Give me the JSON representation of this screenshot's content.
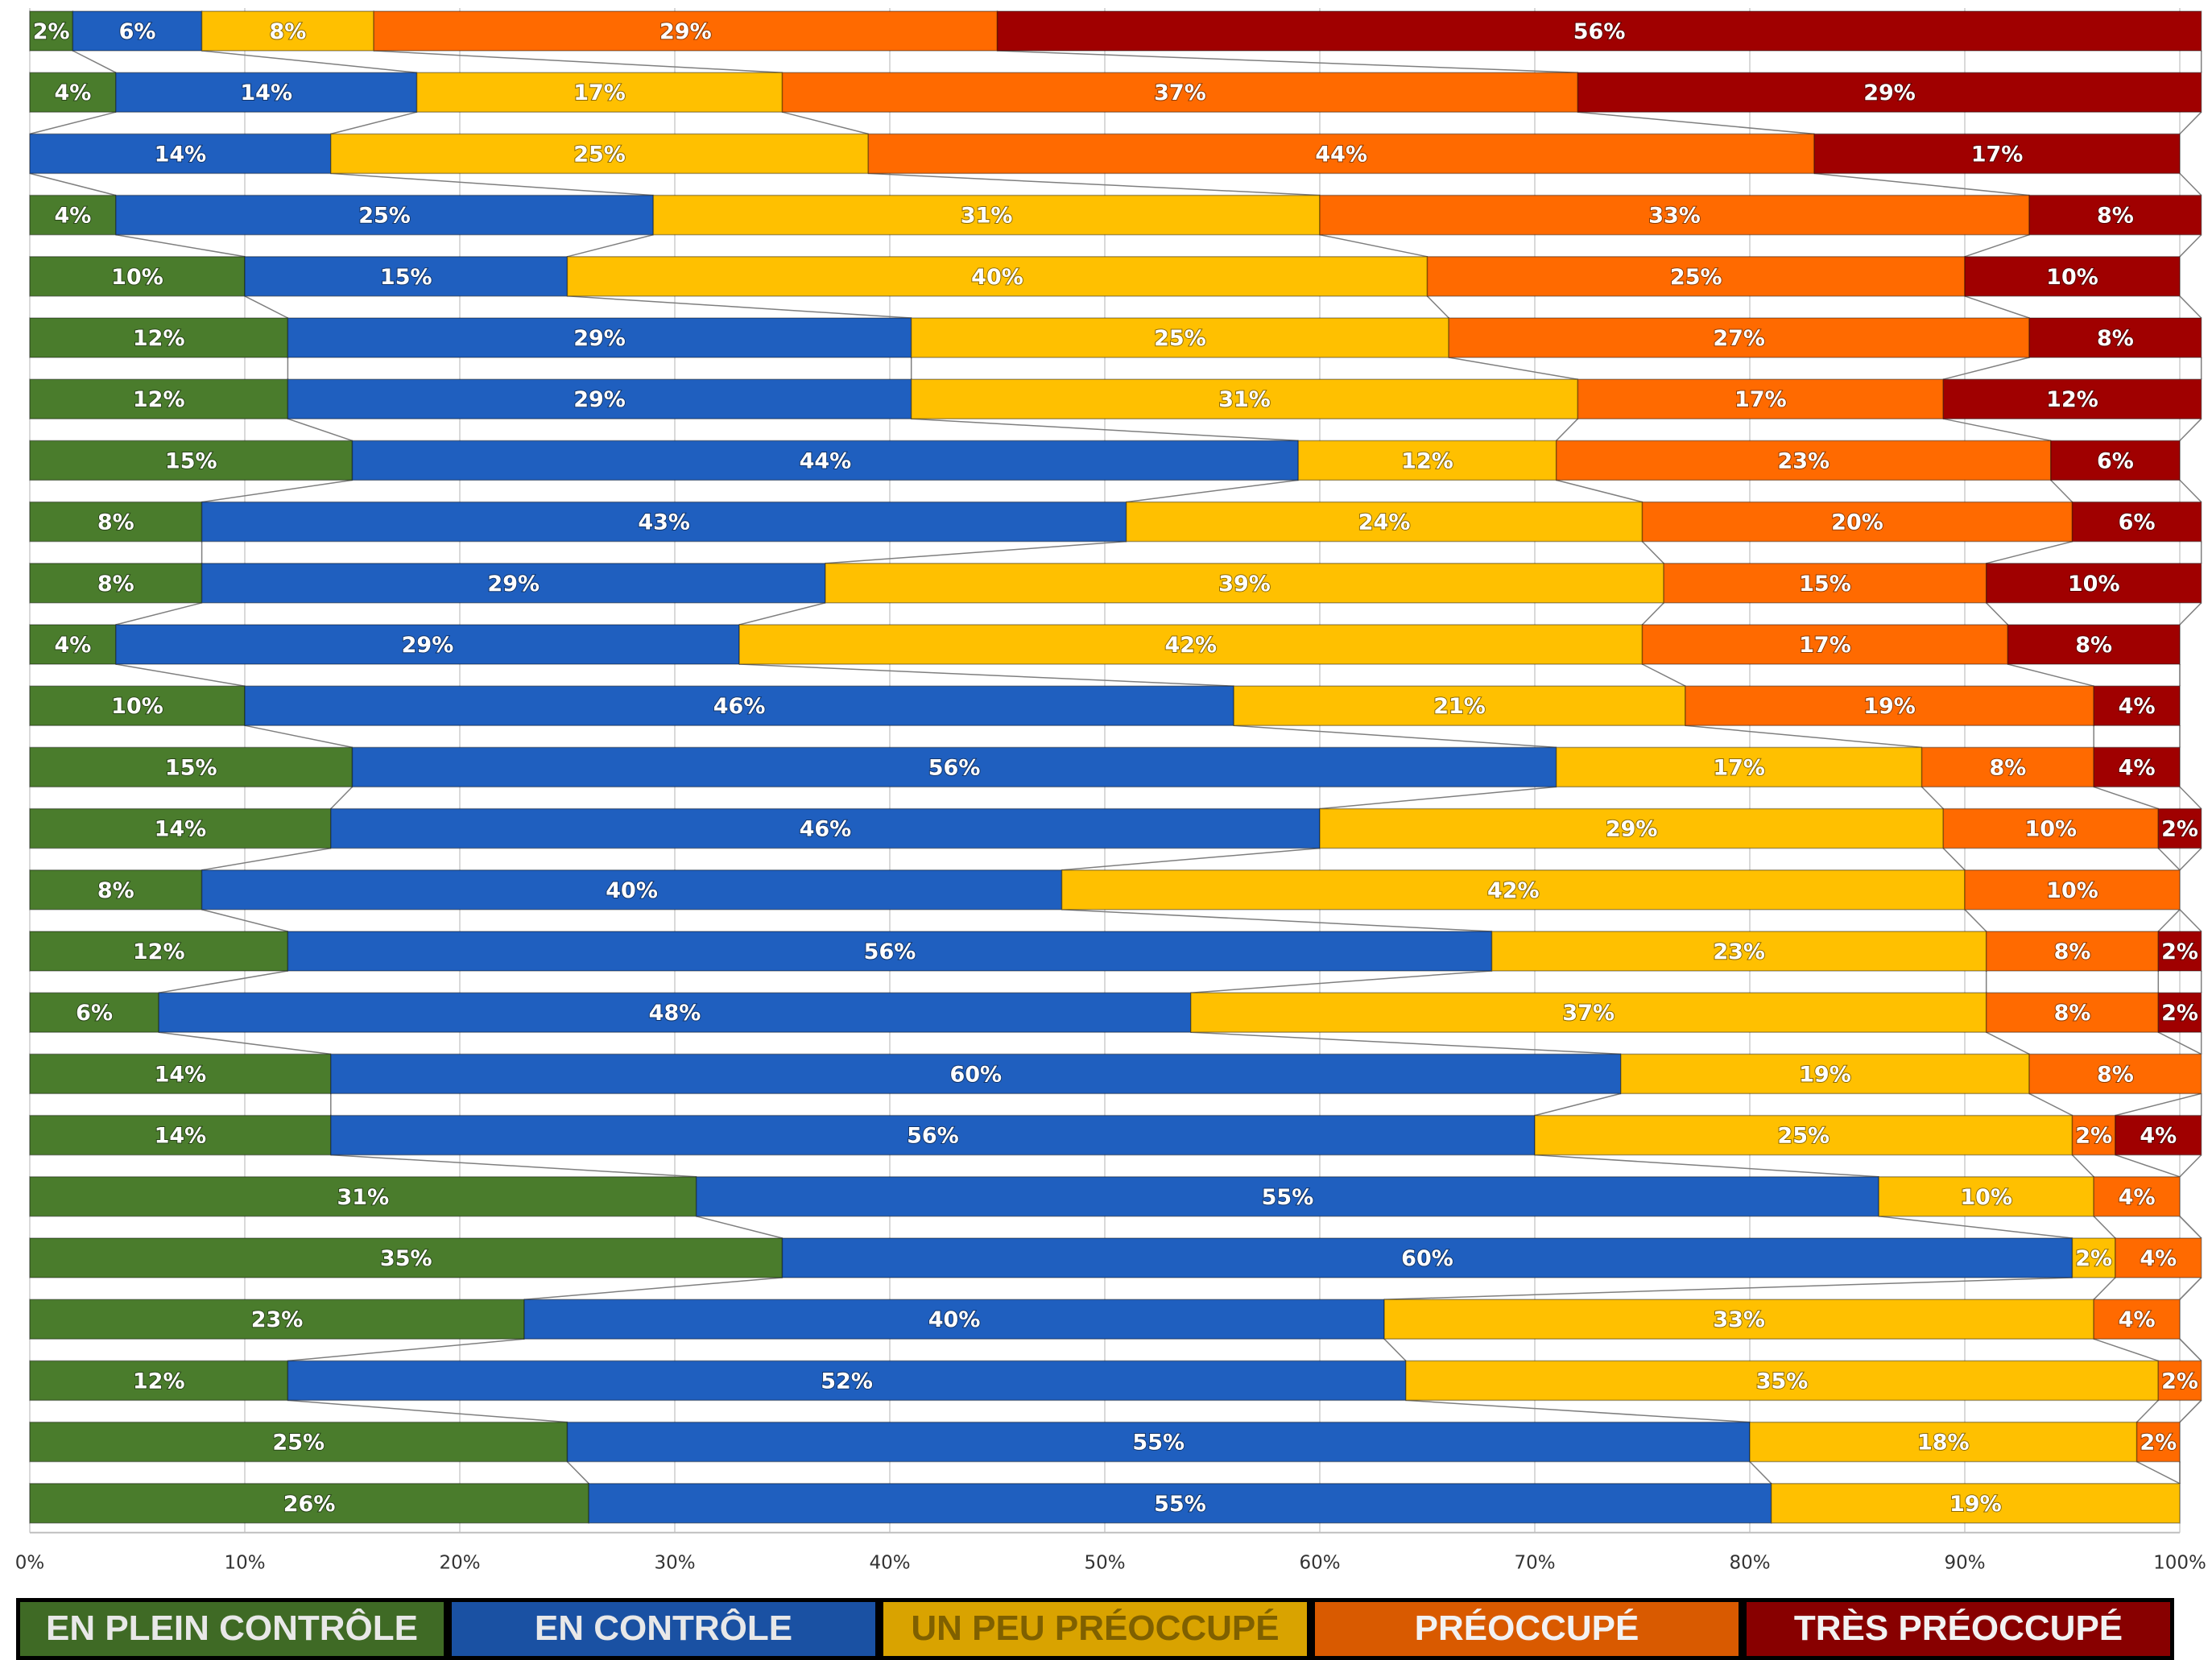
{
  "chart_data": {
    "type": "bar",
    "orientation": "horizontal",
    "stacked": true,
    "categories": [
      null,
      null,
      null,
      null,
      null,
      null,
      null,
      null,
      null,
      null,
      null,
      null,
      null,
      null,
      null,
      null,
      null,
      null,
      null,
      null,
      null,
      null,
      null,
      null,
      null
    ],
    "series": [
      {
        "name": "EN PLEIN CONTRÔLE",
        "color": "#4a7c2c",
        "values": [
          2,
          4,
          null,
          4,
          10,
          12,
          12,
          15,
          8,
          8,
          4,
          10,
          15,
          14,
          8,
          12,
          6,
          14,
          14,
          31,
          35,
          23,
          12,
          25,
          26
        ],
        "value_labels": [
          "2%",
          "4%",
          null,
          "4%",
          "10%",
          "12%",
          "12%",
          "15%",
          "8%",
          "8%",
          "4%",
          "10%",
          "15%",
          "14%",
          "8%",
          "12%",
          "6%",
          "14%",
          "14%",
          "31%",
          "35%",
          "23%",
          "12%",
          "25%",
          "26%"
        ]
      },
      {
        "name": "EN CONTRÔLE",
        "color": "#1f5fbf",
        "values": [
          6,
          14,
          14,
          25,
          15,
          29,
          29,
          44,
          43,
          29,
          29,
          46,
          56,
          46,
          40,
          56,
          48,
          60,
          56,
          55,
          60,
          40,
          52,
          55,
          55
        ],
        "value_labels": [
          "6%",
          "14%",
          "14%",
          "25%",
          "15%",
          "29%",
          "29%",
          "44%",
          "43%",
          "29%",
          "29%",
          "46%",
          "56%",
          "46%",
          "40%",
          "56%",
          "48%",
          "60%",
          "56%",
          "55%",
          "60%",
          "40%",
          "52%",
          "55%",
          "55%"
        ]
      },
      {
        "name": "UN PEU PRÉOCCUPÉ",
        "color": "#ffc000",
        "values": [
          8,
          17,
          25,
          31,
          40,
          25,
          31,
          12,
          24,
          39,
          42,
          21,
          17,
          29,
          42,
          23,
          37,
          19,
          25,
          10,
          2,
          33,
          35,
          18,
          19
        ],
        "value_labels": [
          "8%",
          "17%",
          "25%",
          "31%",
          "40%",
          "25%",
          "31%",
          "12%",
          "24%",
          "39%",
          "42%",
          "21%",
          "17%",
          "29%",
          "42%",
          "23%",
          "37%",
          "19%",
          "25%",
          "10%",
          "2%",
          "33%",
          "35%",
          "18%",
          "19%"
        ]
      },
      {
        "name": "PRÉOCCUPÉ",
        "color": "#ff6a00",
        "values": [
          29,
          37,
          44,
          33,
          25,
          27,
          17,
          23,
          20,
          15,
          17,
          19,
          8,
          10,
          10,
          8,
          8,
          8,
          2,
          4,
          4,
          4,
          2,
          2,
          null
        ],
        "value_labels": [
          "29%",
          "37%",
          "44%",
          "33%",
          "25%",
          "27%",
          "17%",
          "23%",
          "20%",
          "15%",
          "17%",
          "19%",
          "8%",
          "10%",
          "10%",
          "8%",
          "8%",
          "8%",
          "2%",
          "4%",
          "4%",
          "4%",
          "2%",
          "2%",
          null
        ]
      },
      {
        "name": "TRÈS PRÉOCCUPÉ",
        "color": "#a00000",
        "values": [
          56,
          29,
          17,
          8,
          10,
          8,
          12,
          6,
          6,
          10,
          8,
          4,
          4,
          2,
          null,
          2,
          2,
          null,
          4,
          null,
          null,
          null,
          null,
          null,
          null
        ],
        "value_labels": [
          "56%",
          "29%",
          "17%",
          "8%",
          "10%",
          "8%",
          "12%",
          "6%",
          "6%",
          "10%",
          "8%",
          "4%",
          "4%",
          "2%",
          null,
          "2%",
          "2%",
          null,
          "4%",
          null,
          null,
          null,
          null,
          null,
          null
        ]
      }
    ],
    "xlim": [
      0,
      100
    ],
    "xticks": [
      {
        "value": 0,
        "label": "0%"
      },
      {
        "value": 10,
        "label": "10%"
      },
      {
        "value": 20,
        "label": "20%"
      },
      {
        "value": 30,
        "label": "30%"
      },
      {
        "value": 40,
        "label": "40%"
      },
      {
        "value": 50,
        "label": "50%"
      },
      {
        "value": 60,
        "label": "60%"
      },
      {
        "value": 70,
        "label": "70%"
      },
      {
        "value": 80,
        "label": "80%"
      },
      {
        "value": 90,
        "label": "90%"
      },
      {
        "value": 100,
        "label": "100%"
      }
    ],
    "grid": true,
    "legend": "bottom"
  }
}
